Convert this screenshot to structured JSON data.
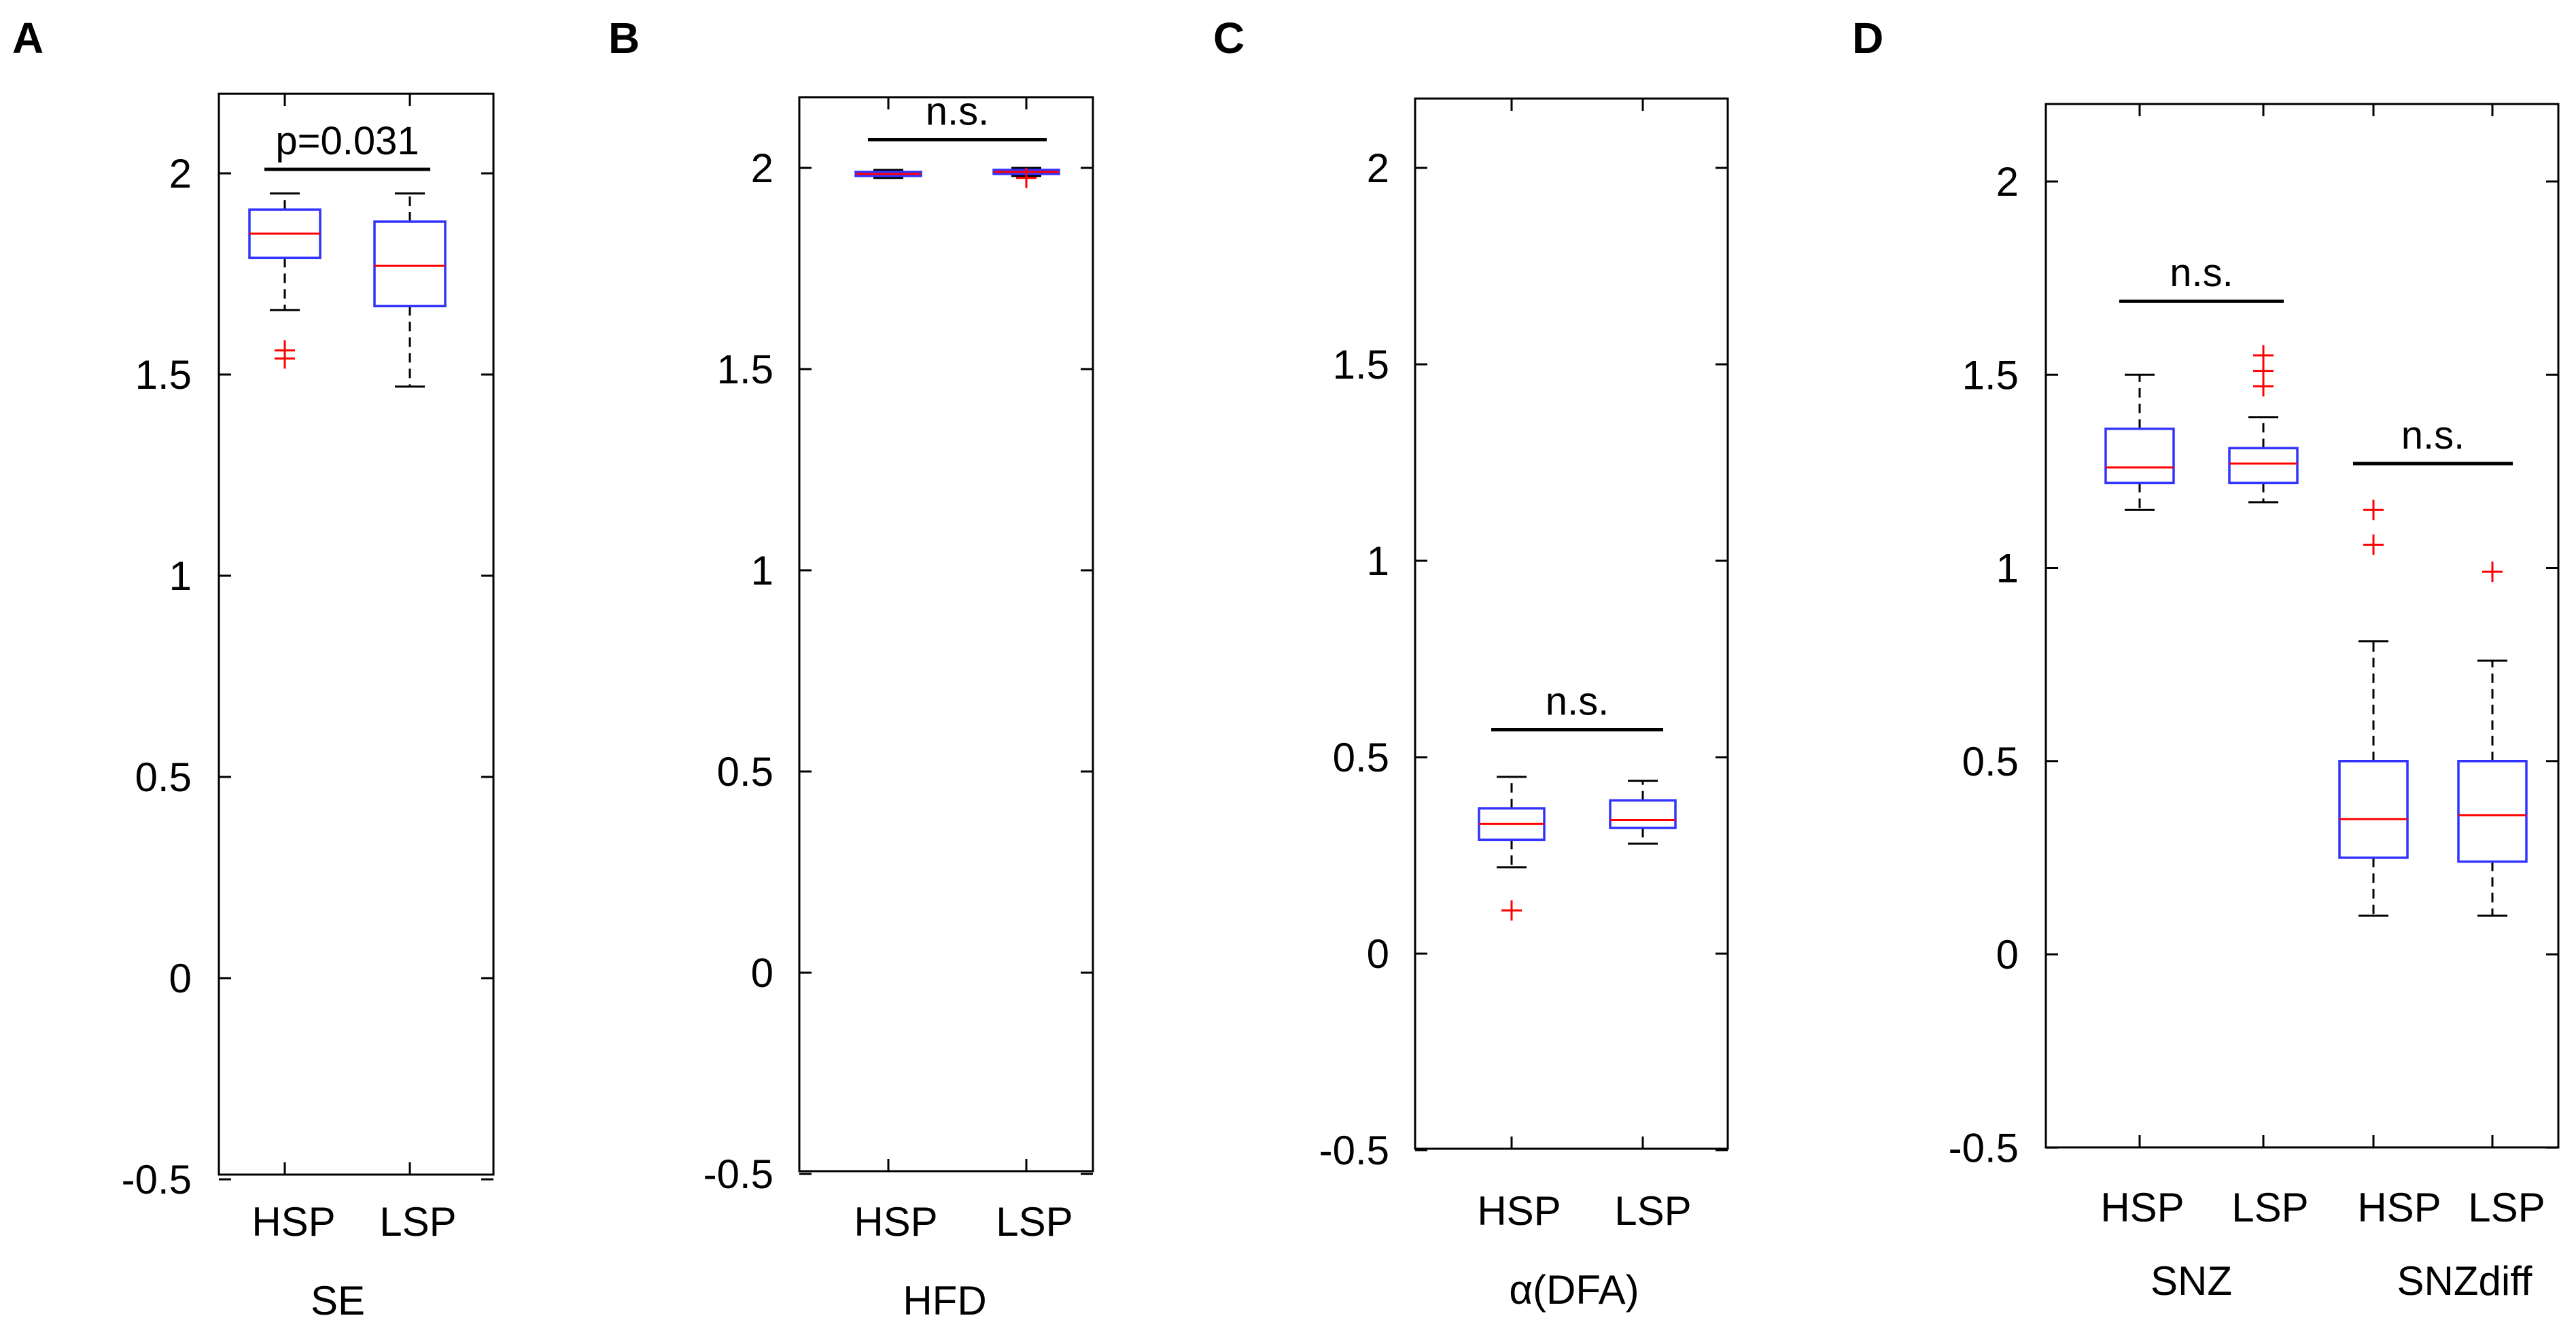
{
  "colors": {
    "box": "#3333ff",
    "median": "#ff0000",
    "outlier": "#ff0000",
    "whisker": "#000000",
    "axis": "#000000"
  },
  "chart_data": [
    {
      "type": "box",
      "panel": "A",
      "xlabel": "SE",
      "ylim": [
        -0.5,
        2.2
      ],
      "yticks": [
        -0.5,
        0,
        0.5,
        1,
        1.5,
        2
      ],
      "ytick_labels": [
        "-0.5",
        "0",
        "0.5",
        "1",
        "1.5",
        "2"
      ],
      "groups": [
        {
          "category": "HSP",
          "boxes": [
            {
              "q1": 1.79,
              "median": 1.85,
              "q3": 1.91,
              "whisker_low": 1.66,
              "whisker_high": 1.95,
              "outliers": [
                1.56,
                1.54
              ]
            }
          ]
        },
        {
          "category": "LSP",
          "boxes": [
            {
              "q1": 1.67,
              "median": 1.77,
              "q3": 1.88,
              "whisker_low": 1.47,
              "whisker_high": 1.95,
              "outliers": []
            }
          ]
        }
      ],
      "comparisons": [
        {
          "from": 0,
          "to": 1,
          "y": 2.01,
          "label": "p=0.031"
        }
      ]
    },
    {
      "type": "box",
      "panel": "B",
      "xlabel": "HFD",
      "ylim": [
        -0.5,
        2.2
      ],
      "yticks": [
        -0.5,
        0,
        0.5,
        1,
        1.5,
        2
      ],
      "ytick_labels": [
        "-0.5",
        "0",
        "0.5",
        "1",
        "1.5",
        "2"
      ],
      "groups": [
        {
          "category": "HSP",
          "boxes": [
            {
              "q1": 1.98,
              "median": 1.985,
              "q3": 1.99,
              "whisker_low": 1.975,
              "whisker_high": 1.995,
              "outliers": []
            }
          ]
        },
        {
          "category": "LSP",
          "boxes": [
            {
              "q1": 1.985,
              "median": 1.99,
              "q3": 1.995,
              "whisker_low": 1.98,
              "whisker_high": 2.0,
              "outliers": [
                1.975
              ]
            }
          ]
        }
      ],
      "comparisons": [
        {
          "from": 0,
          "to": 1,
          "y": 2.07,
          "label": "n.s."
        }
      ]
    },
    {
      "type": "box",
      "panel": "C",
      "xlabel": "α(DFA)",
      "ylim": [
        -0.5,
        2.2
      ],
      "yticks": [
        -0.5,
        0,
        0.5,
        1,
        1.5,
        2
      ],
      "ytick_labels": [
        "-0.5",
        "0",
        "0.5",
        "1",
        "1.5",
        "2"
      ],
      "groups": [
        {
          "category": "HSP",
          "boxes": [
            {
              "q1": 0.29,
              "median": 0.33,
              "q3": 0.37,
              "whisker_low": 0.22,
              "whisker_high": 0.45,
              "outliers": [
                0.11
              ]
            }
          ]
        },
        {
          "category": "LSP",
          "boxes": [
            {
              "q1": 0.32,
              "median": 0.34,
              "q3": 0.39,
              "whisker_low": 0.28,
              "whisker_high": 0.44,
              "outliers": []
            }
          ]
        }
      ],
      "comparisons": [
        {
          "from": 0,
          "to": 1,
          "y": 0.57,
          "label": "n.s."
        }
      ]
    },
    {
      "type": "box",
      "panel": "D",
      "ylim": [
        -0.5,
        2.2
      ],
      "yticks": [
        -0.5,
        0,
        0.5,
        1,
        1.5,
        2
      ],
      "ytick_labels": [
        "-0.5",
        "0",
        "0.5",
        "1",
        "1.5",
        "2"
      ],
      "groups": [
        {
          "category": "SNZ",
          "boxes": [
            {
              "label": "HSP",
              "q1": 1.22,
              "median": 1.26,
              "q3": 1.36,
              "whisker_low": 1.15,
              "whisker_high": 1.5,
              "outliers": []
            },
            {
              "label": "LSP",
              "q1": 1.22,
              "median": 1.27,
              "q3": 1.31,
              "whisker_low": 1.17,
              "whisker_high": 1.39,
              "outliers": [
                1.55,
                1.51,
                1.47
              ]
            }
          ]
        },
        {
          "category": "SNZdiff",
          "boxes": [
            {
              "label": "HSP",
              "q1": 0.25,
              "median": 0.35,
              "q3": 0.5,
              "whisker_low": 0.1,
              "whisker_high": 0.81,
              "outliers": [
                1.15,
                1.06
              ]
            },
            {
              "label": "LSP",
              "q1": 0.24,
              "median": 0.36,
              "q3": 0.5,
              "whisker_low": 0.1,
              "whisker_high": 0.76,
              "outliers": [
                0.99
              ]
            }
          ]
        }
      ],
      "comparisons": [
        {
          "from": 0,
          "to": 1,
          "y": 1.69,
          "label": "n.s."
        },
        {
          "from": 2,
          "to": 3,
          "y": 1.27,
          "label": "n.s."
        }
      ]
    }
  ]
}
